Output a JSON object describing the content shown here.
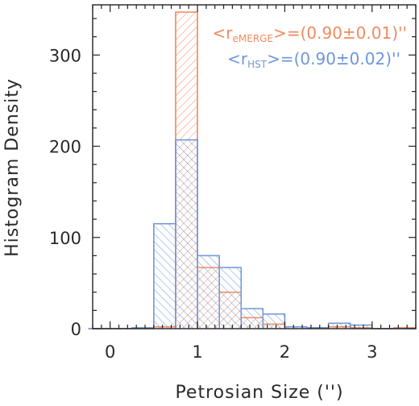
{
  "chart_data": {
    "type": "histogram",
    "xlabel": "Petrosian Size ('')",
    "ylabel": "Histogram Density",
    "xlim": [
      -0.2,
      3.5
    ],
    "ylim": [
      0,
      355
    ],
    "x_ticks": [
      0,
      1,
      2,
      3
    ],
    "y_ticks": [
      0,
      100,
      200,
      300
    ],
    "bin_width": 0.25,
    "bin_edges": [
      -0.25,
      0.0,
      0.25,
      0.5,
      0.75,
      1.0,
      1.25,
      1.5,
      1.75,
      2.0,
      2.25,
      2.5,
      2.75,
      3.0,
      3.25,
      3.5
    ],
    "series": [
      {
        "name": "eMERGE",
        "color": "#f08a5d",
        "hatch": "diagonal-down",
        "legend_label": "<r_eMERGE>=(0.90±0.01)''",
        "legend_parts": {
          "pre": "<r",
          "sub": "eMERGE",
          "post": ">=(0.90±0.01)''"
        },
        "values": [
          0,
          0,
          0,
          2,
          347,
          67,
          40,
          12,
          5,
          2,
          1,
          2,
          1,
          0,
          1
        ]
      },
      {
        "name": "HST",
        "color": "#6f96dc",
        "hatch": "diagonal-up",
        "legend_label": "<r_HST>=(0.90±0.02)''",
        "legend_parts": {
          "pre": "<r",
          "sub": "HST",
          "post": ">=(0.90±0.02)''"
        },
        "values": [
          0,
          0,
          1,
          115,
          207,
          80,
          67,
          22,
          16,
          2,
          1,
          6,
          4,
          0,
          0
        ]
      }
    ],
    "legend_position": "top-right",
    "grid": false
  }
}
